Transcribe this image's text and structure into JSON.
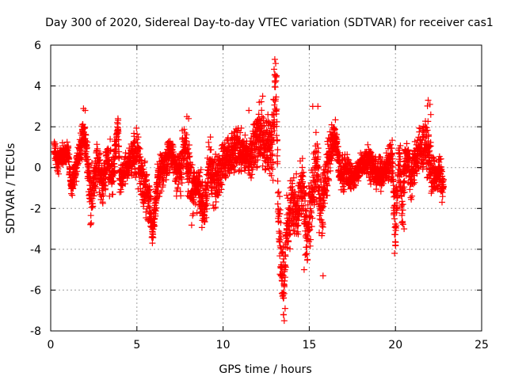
{
  "chart_data": {
    "type": "scatter",
    "title": "Day 300 of 2020, Sidereal Day-to-day VTEC variation (SDTVAR) for receiver cas1",
    "xlabel": "GPS time / hours",
    "ylabel": "SDTVAR / TECUs",
    "xlim": [
      0,
      25
    ],
    "ylim": [
      -8,
      6
    ],
    "xticks": [
      0,
      5,
      10,
      15,
      20,
      25
    ],
    "yticks": [
      -8,
      -6,
      -4,
      -2,
      0,
      2,
      4,
      6
    ],
    "xtick_labels": [
      "0",
      "5",
      "10",
      "15",
      "20",
      "25"
    ],
    "ytick_labels": [
      "-8",
      "-6",
      "-4",
      "-2",
      "0",
      "2",
      "4",
      "6"
    ],
    "grid": true,
    "marker": "+",
    "marker_color": "#ff0000",
    "data_range": [
      0.2,
      22.8
    ],
    "series": [
      {
        "name": "SDTVAR",
        "profile": [
          [
            0.2,
            1.0,
            0.3
          ],
          [
            0.4,
            0.3,
            0.5
          ],
          [
            1.0,
            0.8,
            0.3
          ],
          [
            1.2,
            -1.0,
            0.4
          ],
          [
            1.6,
            0.5,
            0.5
          ],
          [
            1.9,
            1.8,
            0.7
          ],
          [
            2.1,
            0.8,
            0.6
          ],
          [
            2.3,
            -1.5,
            1.0
          ],
          [
            2.5,
            -0.8,
            0.7
          ],
          [
            2.7,
            0.3,
            0.6
          ],
          [
            3.0,
            -1.0,
            0.8
          ],
          [
            3.3,
            0.5,
            0.9
          ],
          [
            3.6,
            -0.5,
            0.8
          ],
          [
            3.9,
            2.2,
            0.3
          ],
          [
            4.0,
            -0.8,
            0.6
          ],
          [
            4.5,
            0.3,
            0.5
          ],
          [
            5.0,
            0.8,
            0.9
          ],
          [
            5.3,
            -0.5,
            0.8
          ],
          [
            5.7,
            -1.5,
            1.0
          ],
          [
            5.9,
            -3.2,
            0.6
          ],
          [
            6.2,
            -0.8,
            0.7
          ],
          [
            6.6,
            0.2,
            0.7
          ],
          [
            7.0,
            0.8,
            0.6
          ],
          [
            7.4,
            -0.5,
            0.8
          ],
          [
            7.8,
            1.0,
            1.0
          ],
          [
            8.2,
            -1.2,
            1.0
          ],
          [
            8.6,
            -0.8,
            0.8
          ],
          [
            8.9,
            -2.2,
            0.8
          ],
          [
            9.2,
            0.2,
            0.8
          ],
          [
            9.6,
            -0.8,
            1.0
          ],
          [
            10.0,
            0.3,
            0.8
          ],
          [
            10.4,
            0.5,
            0.7
          ],
          [
            10.8,
            1.0,
            0.8
          ],
          [
            11.2,
            0.8,
            0.7
          ],
          [
            11.6,
            0.3,
            0.6
          ],
          [
            12.0,
            1.8,
            1.2
          ],
          [
            12.4,
            1.2,
            1.0
          ],
          [
            12.7,
            0.8,
            1.0
          ],
          [
            12.9,
            2.2,
            1.8
          ],
          [
            13.05,
            4.4,
            0.8
          ],
          [
            13.2,
            -1.5,
            1.2
          ],
          [
            13.4,
            -4.8,
            1.5
          ],
          [
            13.5,
            -6.0,
            1.5
          ],
          [
            13.7,
            -2.8,
            1.0
          ],
          [
            14.0,
            -1.8,
            1.2
          ],
          [
            14.3,
            -2.5,
            1.2
          ],
          [
            14.6,
            -0.8,
            1.0
          ],
          [
            14.8,
            -3.0,
            1.2
          ],
          [
            15.1,
            -2.2,
            1.3
          ],
          [
            15.4,
            0.2,
            1.0
          ],
          [
            15.7,
            -2.0,
            1.3
          ],
          [
            15.9,
            -0.8,
            1.0
          ],
          [
            16.2,
            0.8,
            0.8
          ],
          [
            16.5,
            1.5,
            0.6
          ],
          [
            16.8,
            -0.3,
            0.6
          ],
          [
            17.2,
            -0.2,
            0.6
          ],
          [
            17.6,
            -0.5,
            0.4
          ],
          [
            18.0,
            0.1,
            0.5
          ],
          [
            18.4,
            0.5,
            0.6
          ],
          [
            18.8,
            -0.2,
            0.5
          ],
          [
            19.1,
            -0.4,
            0.6
          ],
          [
            19.4,
            -0.1,
            0.3
          ],
          [
            19.8,
            0.5,
            1.0
          ],
          [
            20.0,
            -3.0,
            1.2
          ],
          [
            20.2,
            0.5,
            1.0
          ],
          [
            20.4,
            -1.8,
            1.2
          ],
          [
            20.6,
            0.8,
            0.8
          ],
          [
            20.9,
            -0.5,
            0.7
          ],
          [
            21.2,
            0.5,
            0.8
          ],
          [
            21.5,
            1.0,
            0.8
          ],
          [
            21.9,
            1.0,
            1.2
          ],
          [
            22.1,
            -0.3,
            0.8
          ],
          [
            22.4,
            -0.5,
            0.5
          ],
          [
            22.6,
            -0.3,
            0.8
          ],
          [
            22.8,
            -1.0,
            0.5
          ]
        ],
        "extremes": [
          [
            2.0,
            2.8
          ],
          [
            3.9,
            2.4
          ],
          [
            5.9,
            -3.7
          ],
          [
            7.9,
            2.5
          ],
          [
            8.0,
            2.4
          ],
          [
            8.9,
            -2.6
          ],
          [
            11.5,
            2.8
          ],
          [
            12.1,
            3.2
          ],
          [
            12.3,
            3.5
          ],
          [
            12.6,
            2.6
          ],
          [
            13.0,
            5.3
          ],
          [
            13.05,
            5.1
          ],
          [
            13.1,
            4.5
          ],
          [
            13.45,
            -6.3
          ],
          [
            13.5,
            -7.2
          ],
          [
            13.55,
            -7.5
          ],
          [
            13.6,
            -6.9
          ],
          [
            14.7,
            -5.0
          ],
          [
            14.9,
            -4.5
          ],
          [
            15.2,
            3.0
          ],
          [
            15.5,
            3.0
          ],
          [
            15.8,
            -5.3
          ],
          [
            16.3,
            2.1
          ],
          [
            19.95,
            -4.2
          ],
          [
            20.0,
            -3.8
          ],
          [
            20.5,
            -3.0
          ],
          [
            21.9,
            3.3
          ],
          [
            22.0,
            3.1
          ],
          [
            22.05,
            2.6
          ],
          [
            22.7,
            -1.7
          ]
        ],
        "points_per_hour": 160
      }
    ]
  }
}
